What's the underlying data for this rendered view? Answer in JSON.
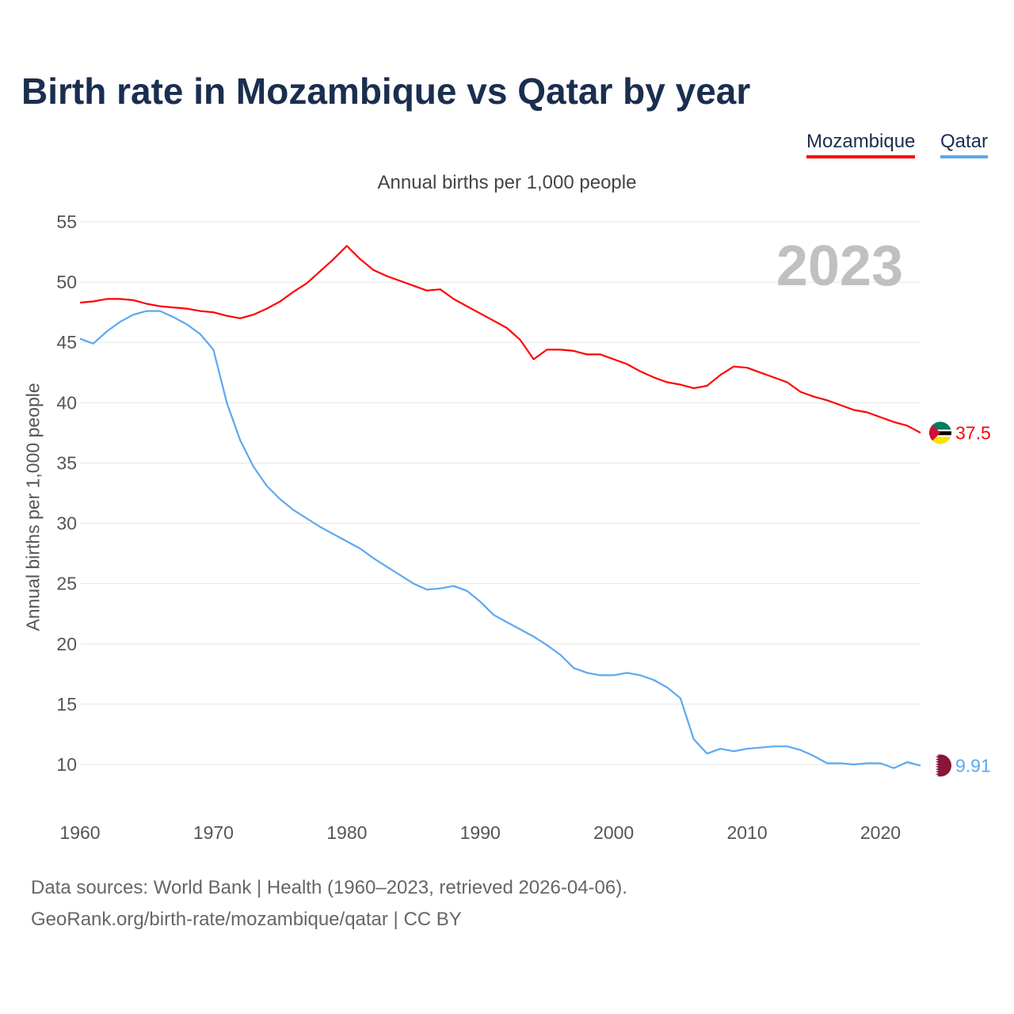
{
  "title": "Birth rate in Mozambique vs Qatar by year",
  "subtitle": "Annual births per 1,000 people",
  "source_line1": "Data sources: World Bank | Health (1960–2023, retrieved 2026-04-06).",
  "source_line2": "GeoRank.org/birth-rate/mozambique/qatar | CC BY",
  "chart_data": {
    "type": "line",
    "title": "Birth rate in Mozambique vs Qatar by year",
    "ylabel": "Annual births per 1,000 people",
    "xlabel": "",
    "year_watermark": "2023",
    "ylim": [
      7,
      55
    ],
    "xlim": [
      1960,
      2023
    ],
    "yticks": [
      10,
      15,
      20,
      25,
      30,
      35,
      40,
      45,
      50,
      55
    ],
    "xticks": [
      1960,
      1970,
      1980,
      1990,
      2000,
      2010,
      2020
    ],
    "grid": true,
    "legend_placement": "top-right",
    "x": [
      1960,
      1961,
      1962,
      1963,
      1964,
      1965,
      1966,
      1967,
      1968,
      1969,
      1970,
      1971,
      1972,
      1973,
      1974,
      1975,
      1976,
      1977,
      1978,
      1979,
      1980,
      1981,
      1982,
      1983,
      1984,
      1985,
      1986,
      1987,
      1988,
      1989,
      1990,
      1991,
      1992,
      1993,
      1994,
      1995,
      1996,
      1997,
      1998,
      1999,
      2000,
      2001,
      2002,
      2003,
      2004,
      2005,
      2006,
      2007,
      2008,
      2009,
      2010,
      2011,
      2012,
      2013,
      2014,
      2015,
      2016,
      2017,
      2018,
      2019,
      2020,
      2021,
      2022,
      2023
    ],
    "series": [
      {
        "name": "Mozambique",
        "color": "#ff0000",
        "end_label": "37.5",
        "values": [
          48.3,
          48.4,
          48.6,
          48.6,
          48.5,
          48.2,
          48.0,
          47.9,
          47.8,
          47.6,
          47.5,
          47.2,
          47.0,
          47.3,
          47.8,
          48.4,
          49.2,
          49.9,
          50.9,
          51.9,
          53.0,
          51.9,
          51.0,
          50.5,
          50.1,
          49.7,
          49.3,
          49.4,
          48.6,
          48.0,
          47.4,
          46.8,
          46.2,
          45.2,
          43.6,
          44.4,
          44.4,
          44.3,
          44.0,
          44.0,
          43.6,
          43.2,
          42.6,
          42.1,
          41.7,
          41.5,
          41.2,
          41.4,
          42.3,
          43.0,
          42.9,
          42.5,
          42.1,
          41.7,
          40.9,
          40.5,
          40.2,
          39.8,
          39.4,
          39.2,
          38.8,
          38.4,
          38.1,
          37.5
        ]
      },
      {
        "name": "Qatar",
        "color": "#5ca8f0",
        "end_label": "9.91",
        "values": [
          45.3,
          44.9,
          45.9,
          46.7,
          47.3,
          47.6,
          47.6,
          47.1,
          46.5,
          45.7,
          44.4,
          40.0,
          36.9,
          34.7,
          33.1,
          32.0,
          31.1,
          30.4,
          29.7,
          29.1,
          28.5,
          27.9,
          27.1,
          26.4,
          25.7,
          25.0,
          24.5,
          24.6,
          24.8,
          24.4,
          23.5,
          22.4,
          21.8,
          21.2,
          20.6,
          19.9,
          19.1,
          18.0,
          17.6,
          17.4,
          17.4,
          17.6,
          17.4,
          17.0,
          16.4,
          15.5,
          12.1,
          10.9,
          11.3,
          11.1,
          11.3,
          11.4,
          11.5,
          11.5,
          11.2,
          10.7,
          10.1,
          10.1,
          10.0,
          10.1,
          10.1,
          9.7,
          10.2,
          9.91
        ]
      }
    ]
  }
}
